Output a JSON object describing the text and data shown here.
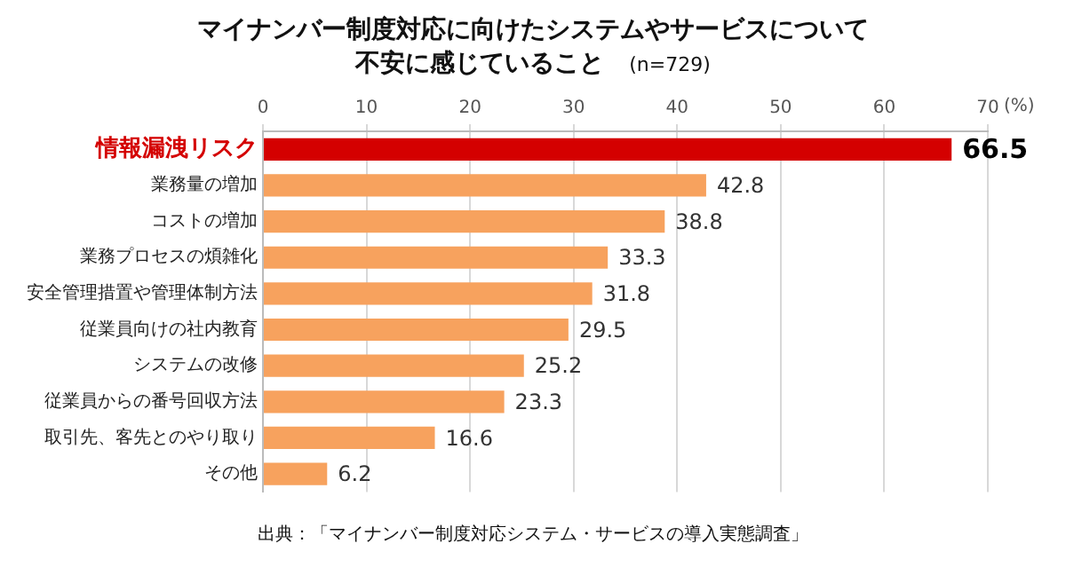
{
  "chart_data": {
    "type": "bar",
    "orientation": "horizontal",
    "title": "マイナンバー制度対応に向けたシステムやサービスについて不安に感じていること",
    "subtitle": "(n=729)",
    "xlabel": "(%)",
    "categories": [
      "情報漏洩リスク",
      "業務量の増加",
      "コストの増加",
      "業務プロセスの煩雑化",
      "安全管理措置や管理体制方法",
      "従業員向けの社内教育",
      "システムの改修",
      "従業員からの番号回収方法",
      "取引先、客先とのやり取り",
      "その他"
    ],
    "values": [
      66.5,
      42.8,
      38.8,
      33.3,
      31.8,
      29.5,
      25.2,
      23.3,
      16.6,
      6.2
    ],
    "colors": [
      "#d40000",
      "#f7a25e",
      "#f7a25e",
      "#f7a25e",
      "#f7a25e",
      "#f7a25e",
      "#f7a25e",
      "#f7a25e",
      "#f7a25e",
      "#f7a25e"
    ],
    "xlim": [
      0,
      70
    ],
    "xticks": [
      0,
      10,
      20,
      30,
      40,
      50,
      60,
      70
    ],
    "grid": "x",
    "data_labels": true,
    "legend": false,
    "annotations": [
      "出典：「マイナンバー制度対応システム・サービスの導入実態調査」"
    ]
  }
}
